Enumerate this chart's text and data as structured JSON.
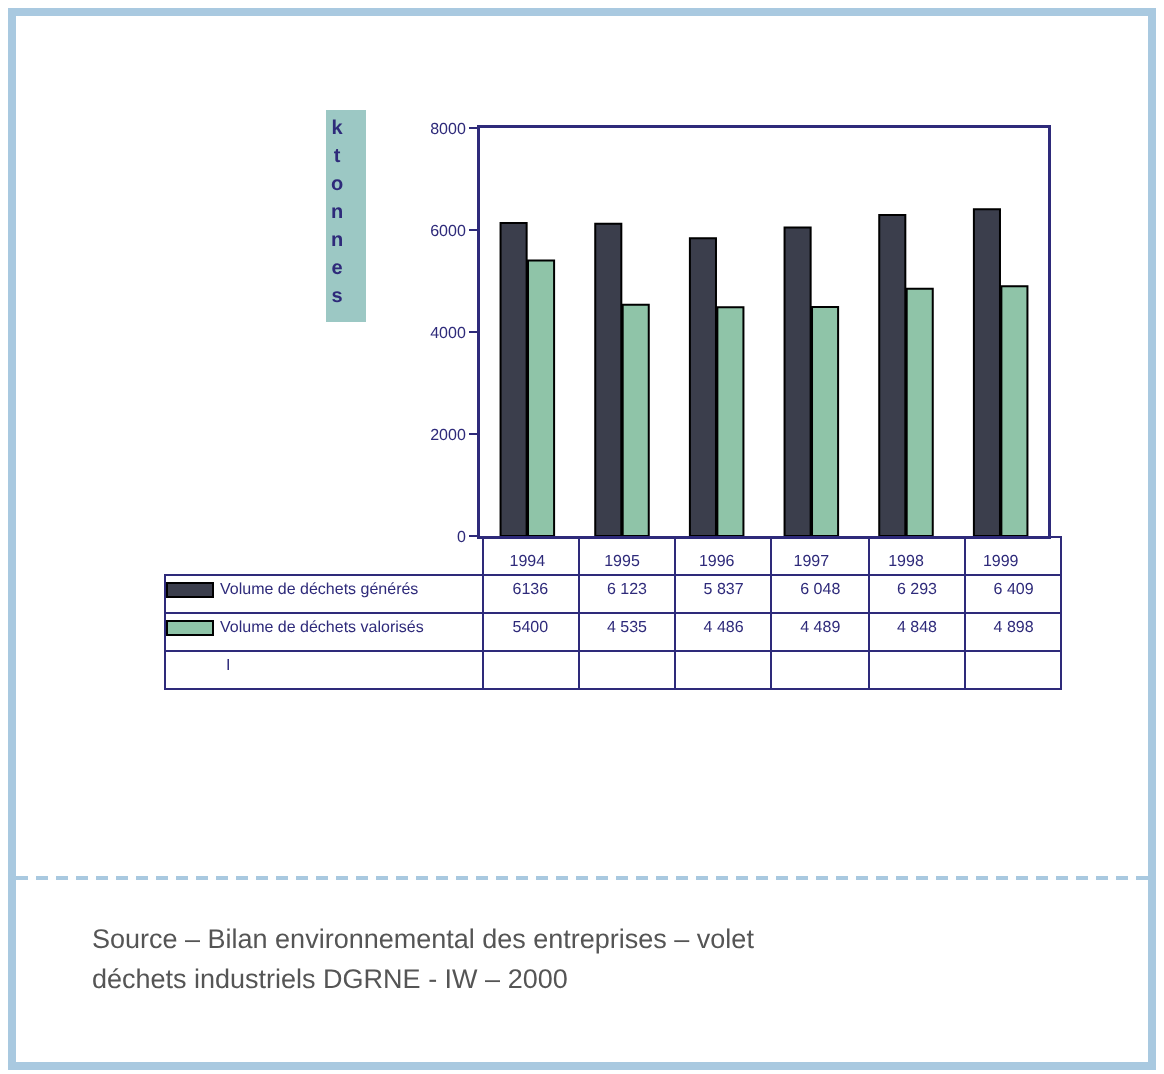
{
  "chart_data": {
    "type": "bar",
    "ylabel": "ktonnes",
    "categories": [
      "1994",
      "1995",
      "1996",
      "1997",
      "1998",
      "1999"
    ],
    "series": [
      {
        "name": "Volume de déchets générés",
        "color": "#3b3e4c",
        "values": [
          6136,
          6123,
          5837,
          6048,
          6293,
          6409
        ],
        "value_labels": [
          "6136",
          "6 123",
          "5 837",
          "6 048",
          "6 293",
          "6 409"
        ]
      },
      {
        "name": "Volume de déchets valorisés",
        "color": "#8fc4a8",
        "values": [
          5400,
          4535,
          4486,
          4489,
          4848,
          4898
        ],
        "value_labels": [
          "5400",
          "4 535",
          "4 486",
          "4 489",
          "4 848",
          "4 898"
        ]
      }
    ],
    "ylim": [
      0,
      8000
    ],
    "yticks": [
      0,
      2000,
      4000,
      6000,
      8000
    ],
    "grid": false,
    "legend": "bottom",
    "annotations": [
      "I",
      "Source – Bilan environnemental des entreprises – volet déchets industriels DGRNE - IW – 2000"
    ]
  }
}
